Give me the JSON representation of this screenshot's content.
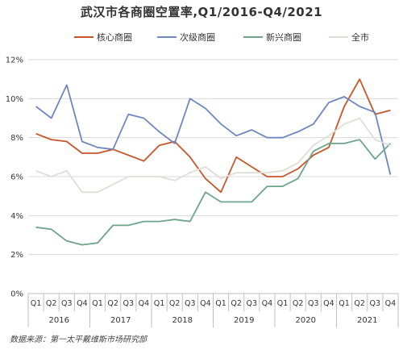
{
  "chart_data": {
    "type": "line",
    "title": "武汉市各商圈空置率,Q1/2016-Q4/2021",
    "source": "数据来源：第一太平戴维斯市场研究部",
    "x_quarters": [
      "Q1",
      "Q2",
      "Q3",
      "Q4",
      "Q1",
      "Q2",
      "Q3",
      "Q4",
      "Q1",
      "Q2",
      "Q3",
      "Q4",
      "Q1",
      "Q2",
      "Q3",
      "Q4",
      "Q1",
      "Q2",
      "Q3",
      "Q4",
      "Q1",
      "Q2",
      "Q3",
      "Q4"
    ],
    "x_years": [
      "2016",
      "2017",
      "2018",
      "2019",
      "2020",
      "2021"
    ],
    "ylim": [
      0,
      12
    ],
    "yticks": [
      "0%",
      "2%",
      "4%",
      "6%",
      "8%",
      "10%",
      "12%"
    ],
    "grid": true,
    "legend_position": "top",
    "series": [
      {
        "name": "核心商圈",
        "color": "#c9552a",
        "values": [
          8.2,
          7.9,
          7.8,
          7.2,
          7.2,
          7.4,
          7.1,
          6.8,
          7.6,
          7.8,
          7.0,
          5.9,
          5.2,
          7.0,
          6.5,
          6.0,
          6.0,
          6.4,
          7.1,
          7.5,
          9.6,
          11.0,
          9.2,
          9.4
        ]
      },
      {
        "name": "次级商圈",
        "color": "#6f86c0",
        "values": [
          9.6,
          9.0,
          10.7,
          7.8,
          7.5,
          7.4,
          9.2,
          9.0,
          8.3,
          7.7,
          10.0,
          9.5,
          8.7,
          8.1,
          8.4,
          8.0,
          8.0,
          8.3,
          8.7,
          9.8,
          10.1,
          9.6,
          9.3,
          6.1
        ]
      },
      {
        "name": "新兴商圈",
        "color": "#6da58b",
        "values": [
          3.4,
          3.3,
          2.7,
          2.5,
          2.6,
          3.5,
          3.5,
          3.7,
          3.7,
          3.8,
          3.7,
          5.2,
          4.7,
          4.7,
          4.7,
          5.5,
          5.5,
          5.9,
          7.3,
          7.7,
          7.7,
          7.9,
          6.9,
          7.7
        ]
      },
      {
        "name": "全市",
        "color": "#e0ddd4",
        "values": [
          6.3,
          6.0,
          6.3,
          5.2,
          5.2,
          5.6,
          6.0,
          6.0,
          6.0,
          5.8,
          6.2,
          6.5,
          5.9,
          6.2,
          6.2,
          6.2,
          6.3,
          6.7,
          7.6,
          8.1,
          8.7,
          9.0,
          7.9,
          7.6
        ]
      }
    ]
  }
}
